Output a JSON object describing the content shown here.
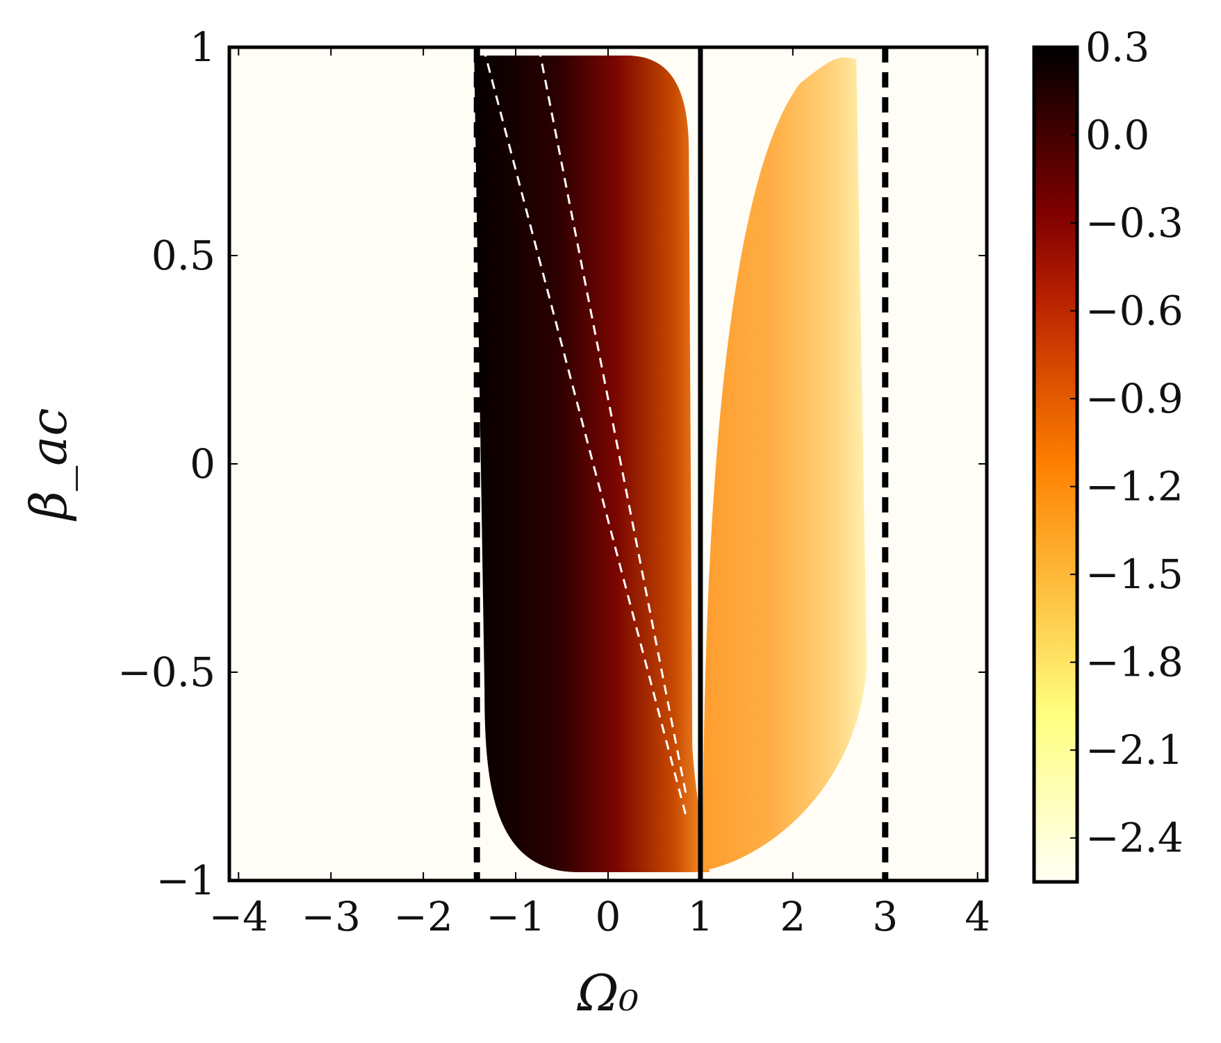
{
  "chart_data": {
    "type": "heatmap",
    "xlabel": "Ω₀",
    "ylabel": "β_ac",
    "xlim": [
      -4.1,
      4.1
    ],
    "ylim": [
      -1,
      1
    ],
    "x_ticks": [
      -4,
      -3,
      -2,
      -1,
      0,
      1,
      2,
      3,
      4
    ],
    "x_tick_labels": [
      "−4",
      "−3",
      "−2",
      "−1",
      "0",
      "1",
      "2",
      "3",
      "4"
    ],
    "y_ticks": [
      -1,
      -0.5,
      0,
      0.5,
      1
    ],
    "y_tick_labels": [
      "−1",
      "−0.5",
      "0",
      "0.5",
      "1"
    ],
    "colorbar": {
      "range": [
        -2.55,
        0.3
      ],
      "ticks": [
        0.3,
        0.0,
        -0.3,
        -0.6,
        -0.9,
        -1.2,
        -1.5,
        -1.8,
        -2.1,
        -2.4
      ],
      "tick_labels": [
        "0.3",
        "0.0",
        "−0.3",
        "−0.6",
        "−0.9",
        "−1.2",
        "−1.5",
        "−1.8",
        "−2.1",
        "−2.4"
      ],
      "colormap": "afmhot_r"
    },
    "regions": [
      {
        "name": "left-region",
        "x_range": [
          -1.45,
          0.95
        ],
        "y_range": [
          -0.98,
          0.98
        ],
        "value_left": 0.3,
        "value_right": -0.9
      },
      {
        "name": "right-region",
        "x_range": [
          1.1,
          2.8
        ],
        "y_range": [
          -0.98,
          0.98
        ],
        "value_left": -1.25,
        "value_right": -2.1
      }
    ],
    "vertical_lines": [
      {
        "x": -1.42,
        "style": "dashed",
        "color": "#000000"
      },
      {
        "x": 1.0,
        "style": "solid",
        "color": "#000000"
      },
      {
        "x": 3.0,
        "style": "dashed",
        "color": "#000000"
      }
    ],
    "white_dashed_lines": [
      {
        "points": [
          [
            -1.35,
            1.0
          ],
          [
            0.85,
            -0.85
          ]
        ]
      },
      {
        "points": [
          [
            -0.75,
            1.0
          ],
          [
            0.85,
            -0.8
          ]
        ]
      }
    ],
    "colors": {
      "background": "#fffdf6",
      "dark": "#0c0000",
      "mid_dark": "#7a0000",
      "orange": "#ff8c1e",
      "light_orange": "#ffb050",
      "pale": "#fff3b0"
    }
  }
}
